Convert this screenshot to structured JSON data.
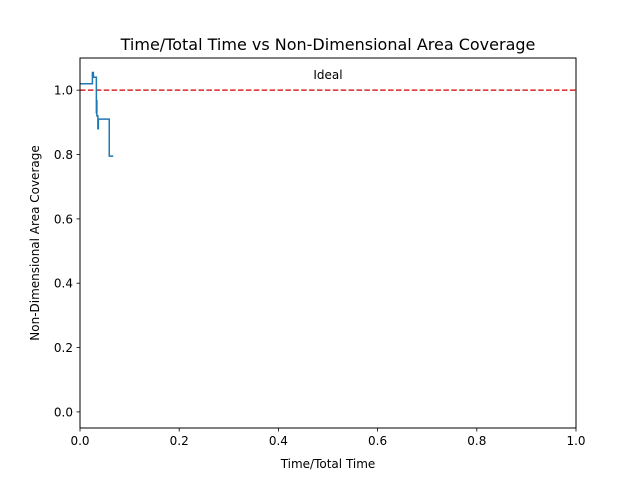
{
  "chart_data": {
    "type": "line",
    "title": "Time/Total Time vs Non-Dimensional Area Coverage",
    "xlabel": "Time/Total Time",
    "ylabel": "Non-Dimensional Area Coverage",
    "xlim": [
      0,
      1
    ],
    "ylim": [
      -0.05,
      1.1
    ],
    "xticks": [
      "0.0",
      "0.2",
      "0.4",
      "0.6",
      "0.8",
      "1.0"
    ],
    "yticks": [
      "0.0",
      "0.2",
      "0.4",
      "0.6",
      "0.8",
      "1.0"
    ],
    "grid": false,
    "series": [
      {
        "color": "#1f77b4",
        "step": true,
        "x": [
          0.0,
          0.024,
          0.025,
          0.027,
          0.027,
          0.032,
          0.033,
          0.034,
          0.034,
          0.036,
          0.037,
          0.058,
          0.059,
          0.067
        ],
        "y": [
          1.02,
          1.02,
          1.055,
          1.055,
          1.04,
          1.04,
          0.93,
          0.97,
          0.92,
          0.88,
          0.91,
          0.91,
          0.795,
          0.795
        ]
      }
    ],
    "reference_line": {
      "y": 1.0,
      "color": "#d62728",
      "style": "dashed",
      "label": "Ideal"
    }
  }
}
